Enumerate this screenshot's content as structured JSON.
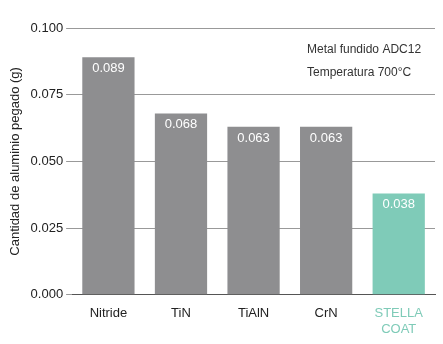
{
  "chart_data": {
    "type": "bar",
    "y_label": "Cantidad de aluminio pegado (g)",
    "categories": [
      "Nitride",
      "TiN",
      "TiAlN",
      "CrN",
      "STELLA COAT"
    ],
    "values": [
      0.089,
      0.068,
      0.063,
      0.063,
      0.038
    ],
    "colors": [
      "#8e8e90",
      "#8e8e90",
      "#8e8e90",
      "#8e8e90",
      "#7fcbb8"
    ],
    "ylim": [
      0,
      0.1
    ],
    "yticks": [
      {
        "value": 0,
        "label": "0.000"
      },
      {
        "value": 0.025,
        "label": "0.025"
      },
      {
        "value": 0.05,
        "label": "0.050"
      },
      {
        "value": 0.075,
        "label": "0.075"
      },
      {
        "value": 0.1,
        "label": "0.100"
      }
    ],
    "grid": true,
    "data_labels": true,
    "annotations": [
      "Metal fundido ADC12",
      "Temperatura 700°C"
    ]
  }
}
